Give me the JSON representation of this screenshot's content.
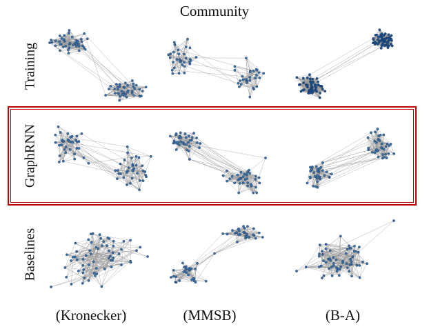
{
  "figure": {
    "title": "Community",
    "rows": [
      {
        "label": "Training"
      },
      {
        "label": "GraphRNN",
        "highlighted": true,
        "highlight_color": "#c00000"
      },
      {
        "label": "Baselines"
      }
    ],
    "columns": [
      {
        "label": "(Kronecker)"
      },
      {
        "label": "(MMSB)"
      },
      {
        "label": "(B-A)"
      }
    ],
    "graphs": [
      {
        "row": "Training",
        "column": "(Kronecker)",
        "structure": "two dense communities joined by a few edges",
        "node_color": "#3a6ea5"
      },
      {
        "row": "Training",
        "column": "(MMSB)",
        "structure": "two communities joined by a few edges",
        "node_color": "#3a6ea5"
      },
      {
        "row": "Training",
        "column": "(B-A)",
        "structure": "two very dense communities joined by a few long edges",
        "node_color": "#1f4f8a"
      },
      {
        "row": "GraphRNN",
        "column": "(Kronecker)",
        "structure": "two communities joined by a bundle of edges",
        "node_color": "#3a6ea5"
      },
      {
        "row": "GraphRNN",
        "column": "(MMSB)",
        "structure": "two communities joined by a bundle of edges",
        "node_color": "#3a6ea5"
      },
      {
        "row": "GraphRNN",
        "column": "(B-A)",
        "structure": "two communities joined by a bundle of edges",
        "node_color": "#3a6ea5"
      },
      {
        "row": "Baselines",
        "column": "(Kronecker)",
        "structure": "single diffuse cluster",
        "node_color": "#3a6ea5"
      },
      {
        "row": "Baselines",
        "column": "(MMSB)",
        "structure": "two communities joined by a thin chain",
        "node_color": "#3a6ea5"
      },
      {
        "row": "Baselines",
        "column": "(B-A)",
        "structure": "single dense cluster with hub spokes",
        "node_color": "#3a6ea5"
      }
    ],
    "edge_color": "#9a9a9a"
  }
}
